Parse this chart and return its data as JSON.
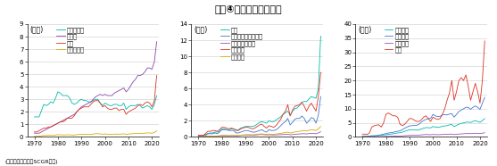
{
  "title": "図表④　産業別の輸入額",
  "source_note": "(出所：内閣府よりSCGR作成)",
  "years": [
    1970,
    1971,
    1972,
    1973,
    1974,
    1975,
    1976,
    1977,
    1978,
    1979,
    1980,
    1981,
    1982,
    1983,
    1984,
    1985,
    1986,
    1987,
    1988,
    1989,
    1990,
    1991,
    1992,
    1993,
    1994,
    1995,
    1996,
    1997,
    1998,
    1999,
    2000,
    2001,
    2002,
    2003,
    2004,
    2005,
    2006,
    2007,
    2008,
    2009,
    2010,
    2011,
    2012,
    2013,
    2014,
    2015,
    2016,
    2017,
    2018,
    2019,
    2020,
    2021,
    2022
  ],
  "panel1": {
    "ylabel": "(兆円)",
    "ylim": [
      0,
      9
    ],
    "yticks": [
      0,
      1,
      2,
      3,
      4,
      5,
      6,
      7,
      8,
      9
    ],
    "series": {
      "農林水産業": {
        "color": "#00BBAA",
        "values": [
          1.6,
          1.6,
          1.6,
          2.1,
          2.6,
          2.5,
          2.6,
          2.8,
          2.7,
          3.1,
          3.6,
          3.5,
          3.3,
          3.3,
          3.3,
          3.1,
          2.7,
          2.6,
          2.7,
          2.9,
          3.0,
          2.9,
          2.9,
          2.8,
          2.8,
          2.9,
          3.0,
          3.0,
          2.7,
          2.5,
          2.7,
          2.6,
          2.5,
          2.5,
          2.6,
          2.6,
          2.5,
          2.5,
          2.7,
          2.2,
          2.4,
          2.5,
          2.5,
          2.5,
          2.6,
          2.5,
          2.3,
          2.4,
          2.5,
          2.4,
          2.2,
          2.6,
          3.3
        ]
      },
      "食料品": {
        "color": "#8844AA",
        "values": [
          0.3,
          0.3,
          0.3,
          0.4,
          0.5,
          0.6,
          0.7,
          0.8,
          0.9,
          1.0,
          1.1,
          1.2,
          1.3,
          1.4,
          1.5,
          1.6,
          1.7,
          1.8,
          2.0,
          2.2,
          2.4,
          2.5,
          2.6,
          2.7,
          2.8,
          3.0,
          3.2,
          3.3,
          3.4,
          3.3,
          3.4,
          3.3,
          3.3,
          3.3,
          3.5,
          3.6,
          3.7,
          3.8,
          3.9,
          3.6,
          3.8,
          4.1,
          4.4,
          4.6,
          4.9,
          4.9,
          5.0,
          5.2,
          5.5,
          5.5,
          5.4,
          6.0,
          7.6
        ]
      },
      "繊維": {
        "color": "#DD3322",
        "values": [
          0.4,
          0.4,
          0.5,
          0.6,
          0.7,
          0.7,
          0.8,
          0.8,
          0.9,
          1.0,
          1.1,
          1.2,
          1.2,
          1.3,
          1.5,
          1.5,
          1.5,
          1.7,
          2.0,
          2.2,
          2.3,
          2.4,
          2.4,
          2.4,
          2.6,
          2.8,
          2.9,
          2.9,
          2.7,
          2.4,
          2.5,
          2.3,
          2.2,
          2.2,
          2.3,
          2.3,
          2.1,
          2.2,
          2.2,
          1.8,
          2.0,
          2.1,
          2.2,
          2.3,
          2.5,
          2.6,
          2.5,
          2.7,
          2.8,
          2.7,
          2.4,
          2.9,
          4.9
        ]
      },
      "パルプ・紙": {
        "color": "#DDAA00",
        "values": [
          0.05,
          0.05,
          0.06,
          0.08,
          0.12,
          0.12,
          0.13,
          0.13,
          0.12,
          0.15,
          0.18,
          0.17,
          0.16,
          0.16,
          0.17,
          0.17,
          0.15,
          0.15,
          0.18,
          0.2,
          0.22,
          0.21,
          0.2,
          0.2,
          0.2,
          0.23,
          0.26,
          0.26,
          0.24,
          0.22,
          0.24,
          0.22,
          0.21,
          0.21,
          0.22,
          0.23,
          0.22,
          0.23,
          0.25,
          0.21,
          0.23,
          0.25,
          0.26,
          0.27,
          0.29,
          0.29,
          0.27,
          0.3,
          0.32,
          0.32,
          0.3,
          0.36,
          0.48
        ]
      }
    }
  },
  "panel2": {
    "ylabel": "(兆円)",
    "ylim": [
      0,
      14
    ],
    "yticks": [
      0,
      2,
      4,
      6,
      8,
      10,
      12,
      14
    ],
    "series": {
      "化学": {
        "color": "#00BBAA",
        "values": [
          0.2,
          0.2,
          0.2,
          0.3,
          0.4,
          0.5,
          0.5,
          0.6,
          0.6,
          0.7,
          0.9,
          0.9,
          0.9,
          0.9,
          1.0,
          1.0,
          0.9,
          0.9,
          1.1,
          1.2,
          1.3,
          1.3,
          1.3,
          1.3,
          1.4,
          1.6,
          1.8,
          1.9,
          1.8,
          1.7,
          2.0,
          1.9,
          1.9,
          2.1,
          2.3,
          2.5,
          2.8,
          3.0,
          3.2,
          2.7,
          3.2,
          3.5,
          3.6,
          3.9,
          4.3,
          4.4,
          4.4,
          4.7,
          5.0,
          4.9,
          4.8,
          6.0,
          12.5
        ]
      },
      "石油製品・石炭製品": {
        "color": "#4477CC",
        "values": [
          0.1,
          0.1,
          0.1,
          0.2,
          0.4,
          0.4,
          0.4,
          0.5,
          0.4,
          0.6,
          1.0,
          1.0,
          0.9,
          0.8,
          0.8,
          0.8,
          0.5,
          0.5,
          0.6,
          0.7,
          0.8,
          0.8,
          0.7,
          0.6,
          0.6,
          0.7,
          0.8,
          0.9,
          0.7,
          0.6,
          0.9,
          0.8,
          0.8,
          0.9,
          1.1,
          1.4,
          1.7,
          1.9,
          2.3,
          1.5,
          1.8,
          2.2,
          2.3,
          2.3,
          2.6,
          2.3,
          1.7,
          2.0,
          2.4,
          2.3,
          1.7,
          2.7,
          5.0
        ]
      },
      "窯業・土石製品": {
        "color": "#9955BB",
        "values": [
          0.05,
          0.05,
          0.06,
          0.08,
          0.1,
          0.1,
          0.1,
          0.1,
          0.1,
          0.15,
          0.18,
          0.18,
          0.17,
          0.16,
          0.17,
          0.17,
          0.15,
          0.16,
          0.19,
          0.22,
          0.24,
          0.24,
          0.23,
          0.22,
          0.23,
          0.26,
          0.29,
          0.3,
          0.27,
          0.25,
          0.27,
          0.25,
          0.24,
          0.25,
          0.27,
          0.28,
          0.3,
          0.31,
          0.33,
          0.26,
          0.3,
          0.33,
          0.35,
          0.37,
          0.4,
          0.4,
          0.38,
          0.42,
          0.45,
          0.44,
          0.4,
          0.5,
          0.65
        ]
      },
      "一次金属": {
        "color": "#DD3322",
        "values": [
          0.2,
          0.2,
          0.2,
          0.4,
          0.7,
          0.7,
          0.8,
          0.8,
          0.7,
          0.9,
          1.2,
          1.2,
          1.1,
          1.0,
          1.1,
          1.0,
          0.8,
          0.8,
          1.0,
          1.1,
          1.2,
          1.2,
          1.1,
          1.0,
          1.1,
          1.3,
          1.5,
          1.6,
          1.3,
          1.1,
          1.4,
          1.3,
          1.2,
          1.4,
          1.8,
          2.2,
          2.8,
          3.2,
          4.0,
          2.6,
          3.3,
          3.8,
          3.9,
          4.0,
          4.3,
          3.8,
          3.2,
          3.8,
          4.2,
          3.7,
          3.2,
          5.0,
          8.0
        ]
      },
      "金属製品": {
        "color": "#DDAA00",
        "values": [
          0.05,
          0.05,
          0.06,
          0.07,
          0.1,
          0.1,
          0.11,
          0.11,
          0.12,
          0.13,
          0.15,
          0.15,
          0.15,
          0.15,
          0.17,
          0.17,
          0.17,
          0.18,
          0.22,
          0.25,
          0.27,
          0.28,
          0.28,
          0.27,
          0.29,
          0.33,
          0.37,
          0.38,
          0.35,
          0.32,
          0.36,
          0.33,
          0.33,
          0.36,
          0.41,
          0.44,
          0.5,
          0.55,
          0.6,
          0.48,
          0.56,
          0.62,
          0.65,
          0.7,
          0.77,
          0.78,
          0.74,
          0.82,
          0.9,
          0.88,
          0.8,
          1.0,
          1.3
        ]
      }
    }
  },
  "panel3": {
    "ylabel": "(兆円)",
    "ylim": [
      0,
      40
    ],
    "yticks": [
      0,
      5,
      10,
      15,
      20,
      25,
      30,
      35,
      40
    ],
    "series": {
      "一般機械": {
        "color": "#00BBAA",
        "values": [
          0.2,
          0.2,
          0.2,
          0.3,
          0.4,
          0.4,
          0.4,
          0.5,
          0.6,
          0.7,
          0.8,
          0.9,
          1.0,
          1.1,
          1.3,
          1.4,
          1.5,
          1.7,
          2.0,
          2.3,
          2.5,
          2.5,
          2.5,
          2.4,
          2.5,
          2.8,
          3.1,
          3.3,
          3.3,
          3.2,
          3.7,
          3.5,
          3.4,
          3.5,
          3.8,
          3.9,
          4.0,
          4.3,
          4.4,
          3.7,
          4.1,
          4.5,
          4.8,
          5.0,
          5.2,
          5.3,
          5.1,
          5.5,
          5.8,
          5.5,
          5.2,
          5.8,
          6.5
        ]
      },
      "電気機械": {
        "color": "#4477CC",
        "values": [
          0.2,
          0.2,
          0.2,
          0.3,
          0.4,
          0.4,
          0.5,
          0.6,
          0.8,
          1.0,
          1.2,
          1.4,
          1.5,
          1.6,
          1.9,
          2.0,
          2.2,
          2.6,
          3.1,
          3.5,
          3.9,
          4.0,
          4.1,
          4.1,
          4.5,
          5.2,
          5.8,
          6.2,
          6.5,
          6.6,
          8.0,
          7.5,
          7.2,
          7.3,
          7.8,
          7.9,
          7.8,
          8.1,
          8.3,
          7.0,
          8.0,
          9.0,
          9.5,
          10.0,
          10.5,
          10.5,
          9.8,
          10.5,
          11.0,
          10.5,
          9.8,
          12.0,
          14.0
        ]
      },
      "輸送機械": {
        "color": "#9955BB",
        "values": [
          0.05,
          0.05,
          0.06,
          0.08,
          0.1,
          0.1,
          0.1,
          0.12,
          0.14,
          0.16,
          0.2,
          0.22,
          0.24,
          0.25,
          0.28,
          0.3,
          0.33,
          0.38,
          0.45,
          0.52,
          0.58,
          0.6,
          0.62,
          0.62,
          0.65,
          0.72,
          0.8,
          0.85,
          0.82,
          0.78,
          0.88,
          0.83,
          0.8,
          0.82,
          0.88,
          0.9,
          0.93,
          0.98,
          1.02,
          0.84,
          0.94,
          1.02,
          1.08,
          1.13,
          1.2,
          1.22,
          1.18,
          1.26,
          1.32,
          1.26,
          1.18,
          1.32,
          1.5
        ]
      },
      "鉱業": {
        "color": "#DD3322",
        "values": [
          1.0,
          1.0,
          0.9,
          1.4,
          3.5,
          4.0,
          4.2,
          4.3,
          3.5,
          5.0,
          8.0,
          8.5,
          8.0,
          7.5,
          7.5,
          7.0,
          4.5,
          4.0,
          4.5,
          5.5,
          6.5,
          6.5,
          6.0,
          5.5,
          5.5,
          6.0,
          7.0,
          7.5,
          6.5,
          5.5,
          7.0,
          6.5,
          6.2,
          6.5,
          8.0,
          10.0,
          13.0,
          15.5,
          20.0,
          13.0,
          16.0,
          20.0,
          21.0,
          20.0,
          22.0,
          18.0,
          13.0,
          16.0,
          19.0,
          16.0,
          12.0,
          20.0,
          34.0
        ]
      }
    }
  },
  "background_color": "#ffffff",
  "grid_color": "#cccccc",
  "tick_label_size": 5.0,
  "legend_fontsize": 4.8,
  "axis_label_fontsize": 5.5,
  "title_fontsize": 8.0,
  "source_fontsize": 4.5
}
